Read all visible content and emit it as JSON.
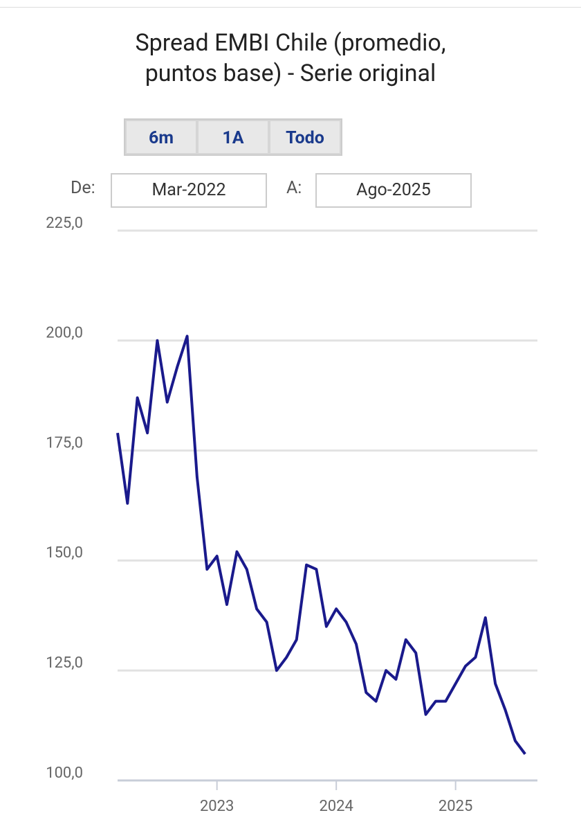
{
  "controls": {
    "buttons": [
      "6m",
      "1A",
      "Todo"
    ],
    "from_label": "De:",
    "from": "Mar-2022",
    "to_label": "A:",
    "to": "Ago-2025"
  },
  "chart_data": {
    "type": "line",
    "title": "Spread EMBI Chile (promedio, puntos base) - Serie original",
    "x": [
      2022.167,
      2022.25,
      2022.333,
      2022.417,
      2022.5,
      2022.583,
      2022.667,
      2022.75,
      2022.833,
      2022.917,
      2023.0,
      2023.083,
      2023.167,
      2023.25,
      2023.333,
      2023.417,
      2023.5,
      2023.583,
      2023.667,
      2023.75,
      2023.833,
      2023.917,
      2024.0,
      2024.083,
      2024.167,
      2024.25,
      2024.333,
      2024.417,
      2024.5,
      2024.583,
      2024.667,
      2024.75,
      2024.833,
      2024.917,
      2025.0,
      2025.083,
      2025.167,
      2025.25,
      2025.333,
      2025.417,
      2025.5,
      2025.583
    ],
    "series": [
      {
        "name": "Spread EMBI Chile",
        "color": "#1a1a8c",
        "values": [
          179,
          163,
          187,
          179,
          200,
          186,
          194,
          201,
          169,
          148,
          151,
          140,
          152,
          148,
          139,
          136,
          125,
          128,
          132,
          149,
          148,
          135,
          139,
          136,
          131,
          120,
          118,
          125,
          123,
          132,
          129,
          115,
          118,
          118,
          122,
          126,
          128,
          137,
          122,
          116,
          109,
          106
        ]
      }
    ],
    "xlim": [
      2022.167,
      2025.686
    ],
    "xticks": [
      2023,
      2024,
      2025
    ],
    "ylim": [
      100,
      225
    ],
    "yticks": [
      {
        "value": 100,
        "label": "100,0"
      },
      {
        "value": 125,
        "label": "125,0"
      },
      {
        "value": 150,
        "label": "150,0"
      },
      {
        "value": 175,
        "label": "175,0"
      },
      {
        "value": 200,
        "label": "200,0"
      },
      {
        "value": 225,
        "label": "225,0"
      }
    ],
    "grid": true
  }
}
